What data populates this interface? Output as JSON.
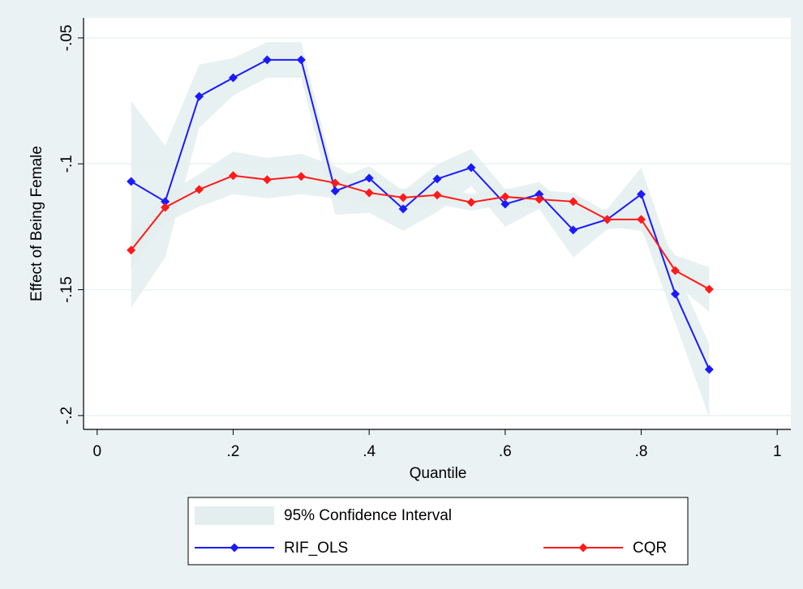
{
  "chart_data": {
    "type": "line",
    "x_label": "Quantile",
    "y_label": "Effect of Being Female",
    "x": [
      0.05,
      0.1,
      0.15,
      0.2,
      0.25,
      0.3,
      0.35,
      0.4,
      0.45,
      0.5,
      0.55,
      0.6,
      0.65,
      0.7,
      0.75,
      0.8,
      0.85,
      0.9
    ],
    "xlim": [
      -0.02,
      1.02
    ],
    "ylim": [
      -0.2055,
      -0.042
    ],
    "xticks": [
      0,
      {
        "value": 0.2,
        "label": ".2"
      },
      {
        "value": 0.4,
        "label": ".4"
      },
      {
        "value": 0.6,
        "label": ".6"
      },
      {
        "value": 0.8,
        "label": ".8"
      },
      1
    ],
    "yticks": [
      {
        "value": -0.05,
        "label": "-.05"
      },
      {
        "value": -0.1,
        "label": "-.1"
      },
      {
        "value": -0.15,
        "label": "-.15"
      },
      {
        "value": -0.2,
        "label": "-.2"
      }
    ],
    "grid": true,
    "confidence_interval": {
      "name": "95% Confidence Interval",
      "color": "#e4eeef",
      "bands": [
        {
          "lower": [
            -0.1572,
            -0.1372,
            -0.0857,
            -0.0729,
            -0.0658,
            -0.0658,
            -0.1202,
            -0.1195,
            -0.1266,
            -0.1192,
            -0.1089,
            -0.125,
            -0.1179,
            -0.1372,
            -0.126,
            -0.125,
            -0.163,
            -0.2007
          ],
          "upper": [
            -0.0751,
            -0.0928,
            -0.0606,
            -0.058,
            -0.0516,
            -0.0516,
            -0.1063,
            -0.1009,
            -0.1108,
            -0.1002,
            -0.0941,
            -0.1102,
            -0.1073,
            -0.1186,
            -0.1179,
            -0.1015,
            -0.1411,
            -0.1717
          ]
        },
        {
          "lower": [
            -0.1411,
            -0.1234,
            -0.117,
            -0.1121,
            -0.1137,
            -0.1121,
            -0.1137,
            -0.1153,
            -0.117,
            -0.116,
            -0.1186,
            -0.1163,
            -0.1176,
            -0.1186,
            -0.125,
            -0.1266,
            -0.1476,
            -0.1588
          ],
          "upper": [
            -0.1282,
            -0.1121,
            -0.1041,
            -0.0951,
            -0.0976,
            -0.096,
            -0.1009,
            -0.1083,
            -0.1099,
            -0.1089,
            -0.1121,
            -0.1099,
            -0.1105,
            -0.1115,
            -0.1192,
            -0.1179,
            -0.1363,
            -0.1411
          ]
        }
      ]
    },
    "series": [
      {
        "name": "RIF_OLS",
        "color": "#1a1aff",
        "values": [
          -0.107,
          -0.115,
          -0.0732,
          -0.0658,
          -0.0587,
          -0.0587,
          -0.1108,
          -0.1057,
          -0.1179,
          -0.106,
          -0.1015,
          -0.116,
          -0.1121,
          -0.1263,
          -0.1221,
          -0.1121,
          -0.1517,
          -0.1817
        ]
      },
      {
        "name": "CQR",
        "color": "#ff1a1a",
        "values": [
          -0.1343,
          -0.1173,
          -0.1102,
          -0.1047,
          -0.1063,
          -0.105,
          -0.1076,
          -0.1115,
          -0.1134,
          -0.1124,
          -0.1153,
          -0.1131,
          -0.1141,
          -0.115,
          -0.1221,
          -0.1221,
          -0.1424,
          -0.1498
        ]
      }
    ]
  }
}
